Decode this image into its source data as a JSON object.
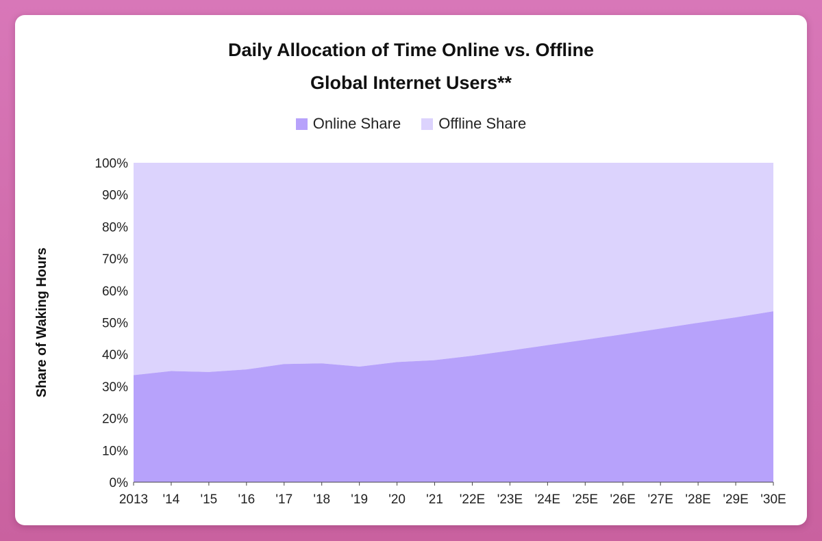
{
  "chart_data": {
    "type": "area",
    "stacked": true,
    "percent": true,
    "title": [
      "Daily Allocation of Time Online vs. Offline",
      "Global Internet Users**"
    ],
    "ylabel": "Share of Waking Hours",
    "xlabel": "",
    "categories": [
      "2013",
      "'14",
      "'15",
      "'16",
      "'17",
      "'18",
      "'19",
      "'20",
      "'21",
      "'22E",
      "'23E",
      "'24E",
      "'25E",
      "'26E",
      "'27E",
      "'28E",
      "'29E",
      "'30E"
    ],
    "series": [
      {
        "name": "Online Share",
        "color": "#b7a2fb",
        "values": [
          33.5,
          34.8,
          34.5,
          35.3,
          37.0,
          37.2,
          36.2,
          37.6,
          38.2,
          39.6,
          41.2,
          42.9,
          44.6,
          46.3,
          48.1,
          49.9,
          51.6,
          53.5
        ]
      },
      {
        "name": "Offline Share",
        "color": "#dcd3fd",
        "values": [
          66.5,
          65.2,
          65.5,
          64.7,
          63.0,
          62.8,
          63.8,
          62.4,
          61.8,
          60.4,
          58.8,
          57.1,
          55.4,
          53.7,
          51.9,
          50.1,
          48.4,
          46.5
        ]
      }
    ],
    "ylim": [
      0,
      100
    ],
    "yticks": [
      "0%",
      "10%",
      "20%",
      "30%",
      "40%",
      "50%",
      "60%",
      "70%",
      "80%",
      "90%",
      "100%"
    ],
    "grid": false,
    "legend": "top-center"
  }
}
